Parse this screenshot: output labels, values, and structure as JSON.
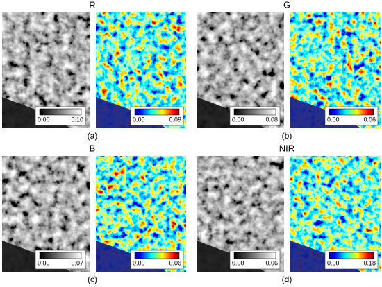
{
  "panels": [
    {
      "band": "R",
      "label": "(a)",
      "gray_scale": {
        "min": "0.00",
        "max": "0.10"
      },
      "color_scale": {
        "min": "0.00",
        "max": "0.09"
      }
    },
    {
      "band": "G",
      "label": "(b)",
      "gray_scale": {
        "min": "0.00",
        "max": "0.08"
      },
      "color_scale": {
        "min": "0.00",
        "max": "0.06"
      }
    },
    {
      "band": "B",
      "label": "(c)",
      "gray_scale": {
        "min": "0.00",
        "max": "0.07"
      },
      "color_scale": {
        "min": "0.00",
        "max": "0.06"
      }
    },
    {
      "band": "NIR",
      "label": "(d)",
      "gray_scale": {
        "min": "0.00",
        "max": "0.06"
      },
      "color_scale": {
        "min": "0.00",
        "max": "0.18"
      }
    }
  ]
}
